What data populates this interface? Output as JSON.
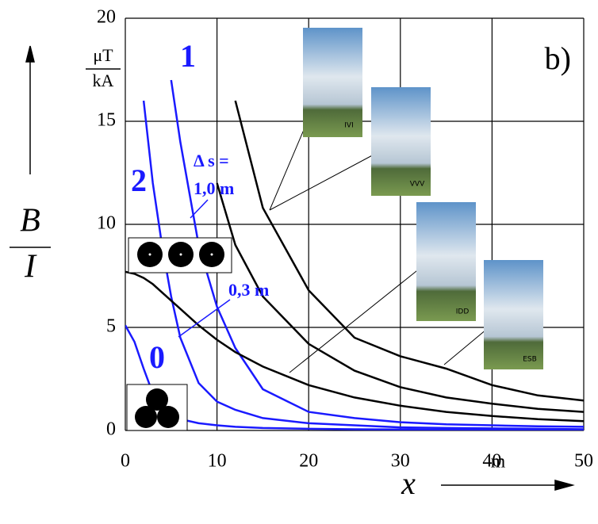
{
  "chart_data": {
    "type": "line",
    "panel_label": "b)",
    "y_unit_top": "μT",
    "y_unit_bottom": "kA",
    "y_label_top": "B",
    "y_label_bottom": "I",
    "x_label": "x",
    "x_unit": "m",
    "x": [
      0,
      1,
      2,
      3,
      4,
      5,
      6,
      8,
      10,
      12,
      15,
      20,
      25,
      30,
      35,
      40,
      45,
      50
    ],
    "series": [
      {
        "name": "0",
        "color": "#1a1aff",
        "values": [
          5.1,
          4.3,
          3.0,
          1.8,
          1.1,
          0.75,
          0.55,
          0.35,
          0.25,
          0.18,
          0.12,
          0.08,
          0.06,
          0.05,
          0.04,
          0.03,
          0.03,
          0.02
        ]
      },
      {
        "name": "2",
        "color": "#1a1aff",
        "values": [
          null,
          null,
          16,
          12,
          9,
          6.5,
          4.5,
          2.3,
          1.4,
          1.0,
          0.6,
          0.35,
          0.25,
          0.15,
          0.12,
          0.1,
          0.08,
          0.06
        ]
      },
      {
        "name": "1",
        "color": "#1a1aff",
        "values": [
          null,
          null,
          null,
          null,
          null,
          17,
          14,
          9,
          6,
          4,
          2,
          0.9,
          0.6,
          0.4,
          0.3,
          0.25,
          0.2,
          0.18
        ]
      },
      {
        "color": "#000000",
        "values": [
          null,
          null,
          null,
          null,
          null,
          null,
          null,
          null,
          null,
          16,
          10.8,
          6.8,
          4.5,
          3.6,
          3.0,
          2.2,
          1.7,
          1.45
        ]
      },
      {
        "color": "#000000",
        "values": [
          null,
          null,
          null,
          null,
          null,
          null,
          null,
          null,
          12,
          9,
          6.5,
          4.2,
          2.9,
          2.1,
          1.6,
          1.3,
          1.05,
          0.9
        ]
      },
      {
        "color": "#000000",
        "values": [
          7.7,
          7.6,
          7.4,
          7.1,
          6.7,
          6.3,
          5.9,
          5.1,
          4.4,
          3.8,
          3.1,
          2.2,
          1.6,
          1.2,
          0.9,
          0.7,
          0.55,
          0.45
        ]
      }
    ],
    "annotations": [
      "Δ s =",
      "1,0 m",
      "0,3 m"
    ],
    "towers": [
      "IVI",
      "VVV",
      "IDD",
      "ESB"
    ],
    "xlim": [
      0,
      50
    ],
    "ylim": [
      0,
      20
    ],
    "xticks": [
      0,
      10,
      20,
      30,
      40,
      50
    ],
    "yticks": [
      0,
      5,
      10,
      15,
      20
    ],
    "grid": true
  }
}
